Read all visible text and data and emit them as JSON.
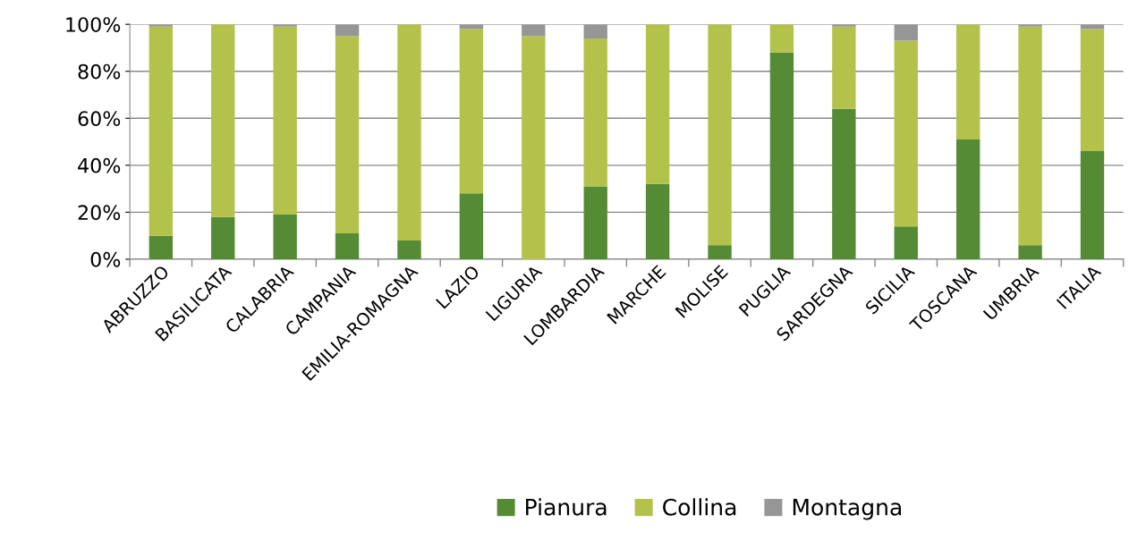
{
  "chart_data": {
    "type": "bar",
    "stacked": true,
    "categories": [
      "ABRUZZO",
      "BASILICATA",
      "CALABRIA",
      "CAMPANIA",
      "EMILIA-ROMAGNA",
      "LAZIO",
      "LIGURIA",
      "LOMBARDIA",
      "MARCHE",
      "MOLISE",
      "PUGLIA",
      "SARDEGNA",
      "SICILIA",
      "TOSCANA",
      "UMBRIA",
      "ITALIA"
    ],
    "series": [
      {
        "name": "Pianura",
        "color": "#558b35",
        "values": [
          10,
          18,
          19,
          11,
          8,
          28,
          0,
          31,
          32,
          6,
          88,
          64,
          14,
          51,
          6,
          46
        ]
      },
      {
        "name": "Collina",
        "color": "#b2c24a",
        "values": [
          89,
          82,
          80,
          84,
          92,
          70,
          95,
          63,
          68,
          94,
          12,
          35,
          79,
          49,
          93,
          52
        ]
      },
      {
        "name": "Montagna",
        "color": "#969696",
        "values": [
          1,
          0,
          1,
          5,
          0,
          2,
          5,
          6,
          0,
          0,
          0,
          1,
          7,
          0,
          1,
          2
        ]
      }
    ],
    "ylim": [
      0,
      100
    ],
    "yticks": [
      {
        "value": 0,
        "label": "0%"
      },
      {
        "value": 20,
        "label": "20%"
      },
      {
        "value": 40,
        "label": "40%"
      },
      {
        "value": 60,
        "label": "60%"
      },
      {
        "value": 80,
        "label": "80%"
      },
      {
        "value": 100,
        "label": "100%"
      }
    ],
    "grid": "y",
    "legend": "bottom"
  }
}
